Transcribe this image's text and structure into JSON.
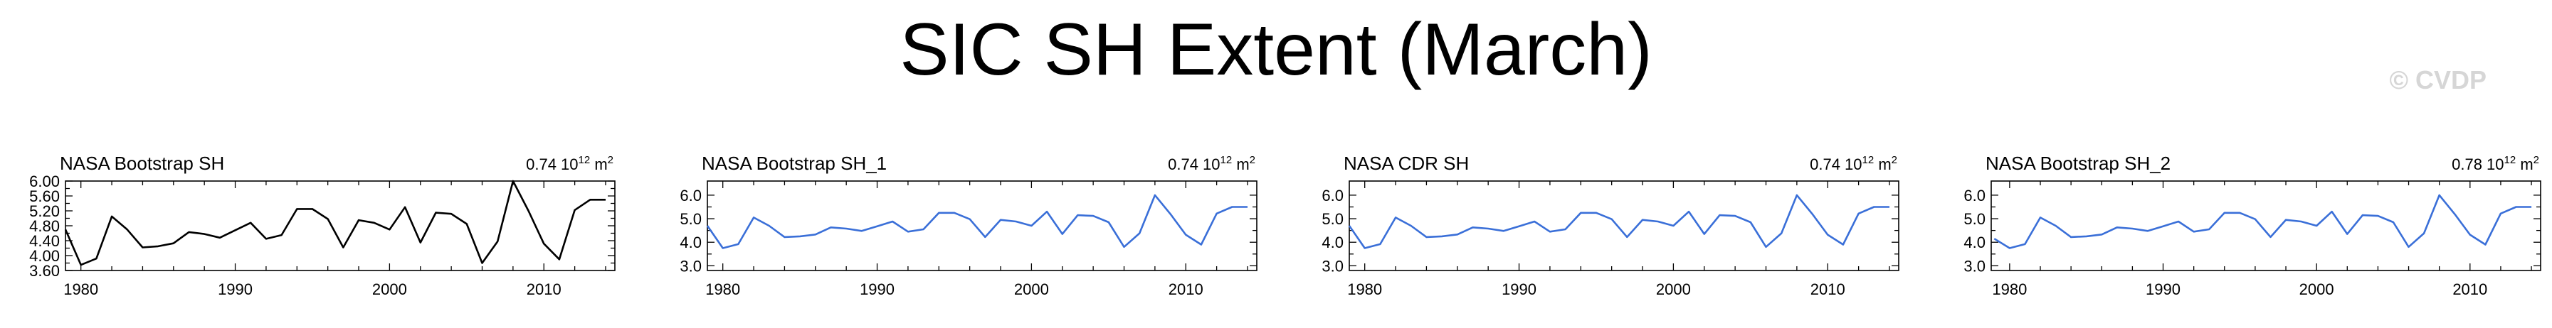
{
  "title": "SIC SH Extent (March)",
  "watermark": "© CVDP",
  "chart_data": [
    {
      "type": "line",
      "title": "NASA Bootstrap SH",
      "stat_value": "0.74",
      "stat_exp": "12",
      "stat_unit": "m",
      "stat_unit_exp": "2",
      "color": "#000000",
      "x": [
        1979,
        1980,
        1981,
        1982,
        1983,
        1984,
        1985,
        1986,
        1987,
        1988,
        1989,
        1990,
        1991,
        1992,
        1993,
        1994,
        1995,
        1996,
        1997,
        1998,
        1999,
        2000,
        2001,
        2002,
        2003,
        2004,
        2005,
        2006,
        2007,
        2008,
        2009,
        2010,
        2011,
        2012,
        2013,
        2014
      ],
      "values": [
        4.7,
        3.75,
        3.92,
        5.05,
        4.7,
        4.22,
        4.25,
        4.33,
        4.63,
        4.58,
        4.48,
        4.68,
        4.88,
        4.45,
        4.55,
        5.25,
        5.25,
        4.98,
        4.22,
        4.95,
        4.88,
        4.7,
        5.3,
        4.35,
        5.15,
        5.12,
        4.85,
        3.8,
        4.38,
        6.0,
        5.2,
        4.32,
        3.9,
        5.22,
        5.5,
        5.5
      ],
      "xticks": [
        "1980",
        "1990",
        "2000",
        "2010"
      ],
      "yticks": [
        "3.60",
        "4.00",
        "4.40",
        "4.80",
        "5.20",
        "5.60",
        "6.00"
      ],
      "xlim": [
        1979,
        2014.6
      ],
      "ylim": [
        3.6,
        6.0
      ],
      "yticks_values": [
        3.6,
        3.8,
        4.0,
        4.2,
        4.4,
        4.6,
        4.8,
        5.0,
        5.2,
        5.4,
        5.6,
        5.8,
        6.0
      ]
    },
    {
      "type": "line",
      "title": "NASA Bootstrap SH_1",
      "stat_value": "0.74",
      "stat_exp": "12",
      "stat_unit": "m",
      "stat_unit_exp": "2",
      "color": "#3a6fd8",
      "x": [
        1979,
        1980,
        1981,
        1982,
        1983,
        1984,
        1985,
        1986,
        1987,
        1988,
        1989,
        1990,
        1991,
        1992,
        1993,
        1994,
        1995,
        1996,
        1997,
        1998,
        1999,
        2000,
        2001,
        2002,
        2003,
        2004,
        2005,
        2006,
        2007,
        2008,
        2009,
        2010,
        2011,
        2012,
        2013,
        2014
      ],
      "values": [
        4.7,
        3.75,
        3.92,
        5.05,
        4.7,
        4.22,
        4.25,
        4.33,
        4.63,
        4.58,
        4.48,
        4.68,
        4.88,
        4.45,
        4.55,
        5.25,
        5.25,
        4.98,
        4.22,
        4.95,
        4.88,
        4.7,
        5.3,
        4.35,
        5.15,
        5.12,
        4.85,
        3.8,
        4.38,
        6.0,
        5.2,
        4.32,
        3.9,
        5.22,
        5.5,
        5.5
      ],
      "xticks": [
        "1980",
        "1990",
        "2000",
        "2010"
      ],
      "yticks": [
        "3.0",
        "4.0",
        "5.0",
        "6.0"
      ],
      "xlim": [
        1979,
        2014.6
      ],
      "ylim": [
        2.8,
        6.6
      ],
      "yticks_values": [
        3.0,
        3.5,
        4.0,
        4.5,
        5.0,
        5.5,
        6.0
      ]
    },
    {
      "type": "line",
      "title": "NASA CDR SH",
      "stat_value": "0.74",
      "stat_exp": "12",
      "stat_unit": "m",
      "stat_unit_exp": "2",
      "color": "#3a6fd8",
      "x": [
        1979,
        1980,
        1981,
        1982,
        1983,
        1984,
        1985,
        1986,
        1987,
        1988,
        1989,
        1990,
        1991,
        1992,
        1993,
        1994,
        1995,
        1996,
        1997,
        1998,
        1999,
        2000,
        2001,
        2002,
        2003,
        2004,
        2005,
        2006,
        2007,
        2008,
        2009,
        2010,
        2011,
        2012,
        2013,
        2014
      ],
      "values": [
        4.7,
        3.75,
        3.92,
        5.05,
        4.7,
        4.22,
        4.25,
        4.33,
        4.63,
        4.58,
        4.48,
        4.68,
        4.88,
        4.45,
        4.55,
        5.25,
        5.25,
        4.98,
        4.22,
        4.95,
        4.88,
        4.7,
        5.3,
        4.35,
        5.15,
        5.12,
        4.85,
        3.8,
        4.38,
        6.0,
        5.2,
        4.32,
        3.9,
        5.22,
        5.5,
        5.5
      ],
      "xticks": [
        "1980",
        "1990",
        "2000",
        "2010"
      ],
      "yticks": [
        "3.0",
        "4.0",
        "5.0",
        "6.0"
      ],
      "xlim": [
        1979,
        2014.6
      ],
      "ylim": [
        2.8,
        6.6
      ],
      "yticks_values": [
        3.0,
        3.5,
        4.0,
        4.5,
        5.0,
        5.5,
        6.0
      ]
    },
    {
      "type": "line",
      "title": "NASA Bootstrap SH_2",
      "stat_value": "0.78",
      "stat_exp": "12",
      "stat_unit": "m",
      "stat_unit_exp": "2",
      "color": "#3a6fd8",
      "x": [
        1979,
        1980,
        1981,
        1982,
        1983,
        1984,
        1985,
        1986,
        1987,
        1988,
        1989,
        1990,
        1991,
        1992,
        1993,
        1994,
        1995,
        1996,
        1997,
        1998,
        1999,
        2000,
        2001,
        2002,
        2003,
        2004,
        2005,
        2006,
        2007,
        2008,
        2009,
        2010,
        2011,
        2012,
        2013,
        2014
      ],
      "values": [
        4.15,
        3.75,
        3.92,
        5.05,
        4.7,
        4.22,
        4.25,
        4.33,
        4.63,
        4.58,
        4.48,
        4.68,
        4.88,
        4.45,
        4.55,
        5.25,
        5.25,
        4.98,
        4.22,
        4.95,
        4.88,
        4.7,
        5.3,
        4.35,
        5.15,
        5.12,
        4.85,
        3.8,
        4.38,
        6.0,
        5.2,
        4.32,
        3.9,
        5.22,
        5.5,
        5.5
      ],
      "xticks": [
        "1980",
        "1990",
        "2000",
        "2010"
      ],
      "yticks": [
        "3.0",
        "4.0",
        "5.0",
        "6.0"
      ],
      "xlim": [
        1978.8,
        2014.6
      ],
      "ylim": [
        2.8,
        6.6
      ],
      "yticks_values": [
        3.0,
        3.5,
        4.0,
        4.5,
        5.0,
        5.5,
        6.0
      ]
    }
  ]
}
